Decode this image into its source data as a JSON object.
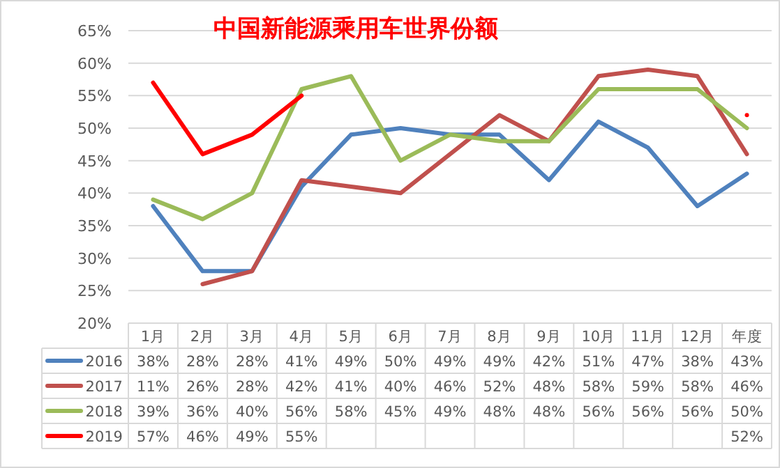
{
  "chart_data": {
    "type": "line",
    "title": "中国新能源乘用车世界份额",
    "categories": [
      "1月",
      "2月",
      "3月",
      "4月",
      "5月",
      "6月",
      "7月",
      "8月",
      "9月",
      "10月",
      "11月",
      "12月",
      "年度"
    ],
    "ylim": [
      20,
      65
    ],
    "yticks": [
      {
        "value": 20,
        "label": "20%"
      },
      {
        "value": 25,
        "label": "25%"
      },
      {
        "value": 30,
        "label": "30%"
      },
      {
        "value": 35,
        "label": "35%"
      },
      {
        "value": 40,
        "label": "40%"
      },
      {
        "value": 45,
        "label": "45%"
      },
      {
        "value": 50,
        "label": "50%"
      },
      {
        "value": 55,
        "label": "55%"
      },
      {
        "value": 60,
        "label": "60%"
      },
      {
        "value": 65,
        "label": "65%"
      }
    ],
    "grid": "y",
    "legend": "bottom",
    "marker": "none",
    "line_style": "solid",
    "series": [
      {
        "name": "2016",
        "color": "#4f81bd",
        "values": [
          38,
          28,
          28,
          41,
          49,
          50,
          49,
          49,
          42,
          51,
          47,
          38,
          43
        ],
        "value_labels": [
          "38%",
          "28%",
          "28%",
          "41%",
          "49%",
          "50%",
          "49%",
          "49%",
          "42%",
          "51%",
          "47%",
          "38%",
          "43%"
        ]
      },
      {
        "name": "2017",
        "color": "#c0504d",
        "values": [
          null,
          26,
          28,
          42,
          41,
          40,
          46,
          52,
          48,
          58,
          59,
          58,
          46
        ],
        "value_labels": [
          "11%",
          "26%",
          "28%",
          "42%",
          "41%",
          "40%",
          "46%",
          "52%",
          "48%",
          "58%",
          "59%",
          "58%",
          "46%"
        ]
      },
      {
        "name": "2018",
        "color": "#9bbb59",
        "values": [
          39,
          36,
          40,
          56,
          58,
          45,
          49,
          48,
          48,
          56,
          56,
          56,
          50
        ],
        "value_labels": [
          "39%",
          "36%",
          "40%",
          "56%",
          "58%",
          "45%",
          "49%",
          "48%",
          "48%",
          "56%",
          "56%",
          "56%",
          "50%"
        ]
      },
      {
        "name": "2019",
        "color": "#ff0000",
        "values": [
          57,
          46,
          49,
          55,
          null,
          null,
          null,
          null,
          null,
          null,
          null,
          null,
          52
        ],
        "value_labels": [
          "57%",
          "46%",
          "49%",
          "55%",
          null,
          null,
          null,
          null,
          null,
          null,
          null,
          null,
          "52%"
        ]
      }
    ]
  }
}
